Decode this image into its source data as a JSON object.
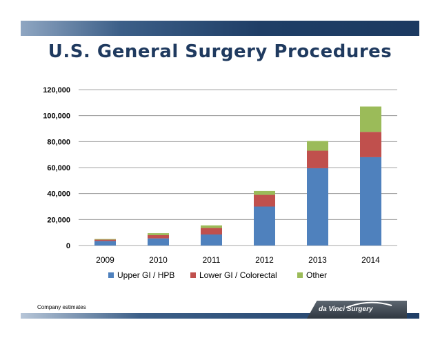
{
  "page_title": "U.S. General Surgery Procedures",
  "footnote": "Company estimates",
  "brand": "da Vinci Surgery",
  "chart_data": {
    "type": "bar",
    "stacked": true,
    "categories": [
      "2009",
      "2010",
      "2011",
      "2012",
      "2013",
      "2014"
    ],
    "series": [
      {
        "name": "Upper GI / HPB",
        "color": "#4f81bd",
        "values": [
          3500,
          5500,
          8500,
          30000,
          59500,
          68000
        ]
      },
      {
        "name": "Lower GI / Colorectal",
        "color": "#c0504d",
        "values": [
          1000,
          2500,
          5000,
          9000,
          13500,
          19500
        ]
      },
      {
        "name": "Other",
        "color": "#9bbb59",
        "values": [
          500,
          1500,
          2000,
          3000,
          7500,
          19500
        ]
      }
    ],
    "ylim": [
      0,
      120000
    ],
    "yticks": [
      "0",
      "20,000",
      "40,000",
      "60,000",
      "80,000",
      "100,000",
      "120,000"
    ],
    "ytick_values": [
      0,
      20000,
      40000,
      60000,
      80000,
      100000,
      120000
    ],
    "legend_position": "bottom",
    "grid": true
  }
}
